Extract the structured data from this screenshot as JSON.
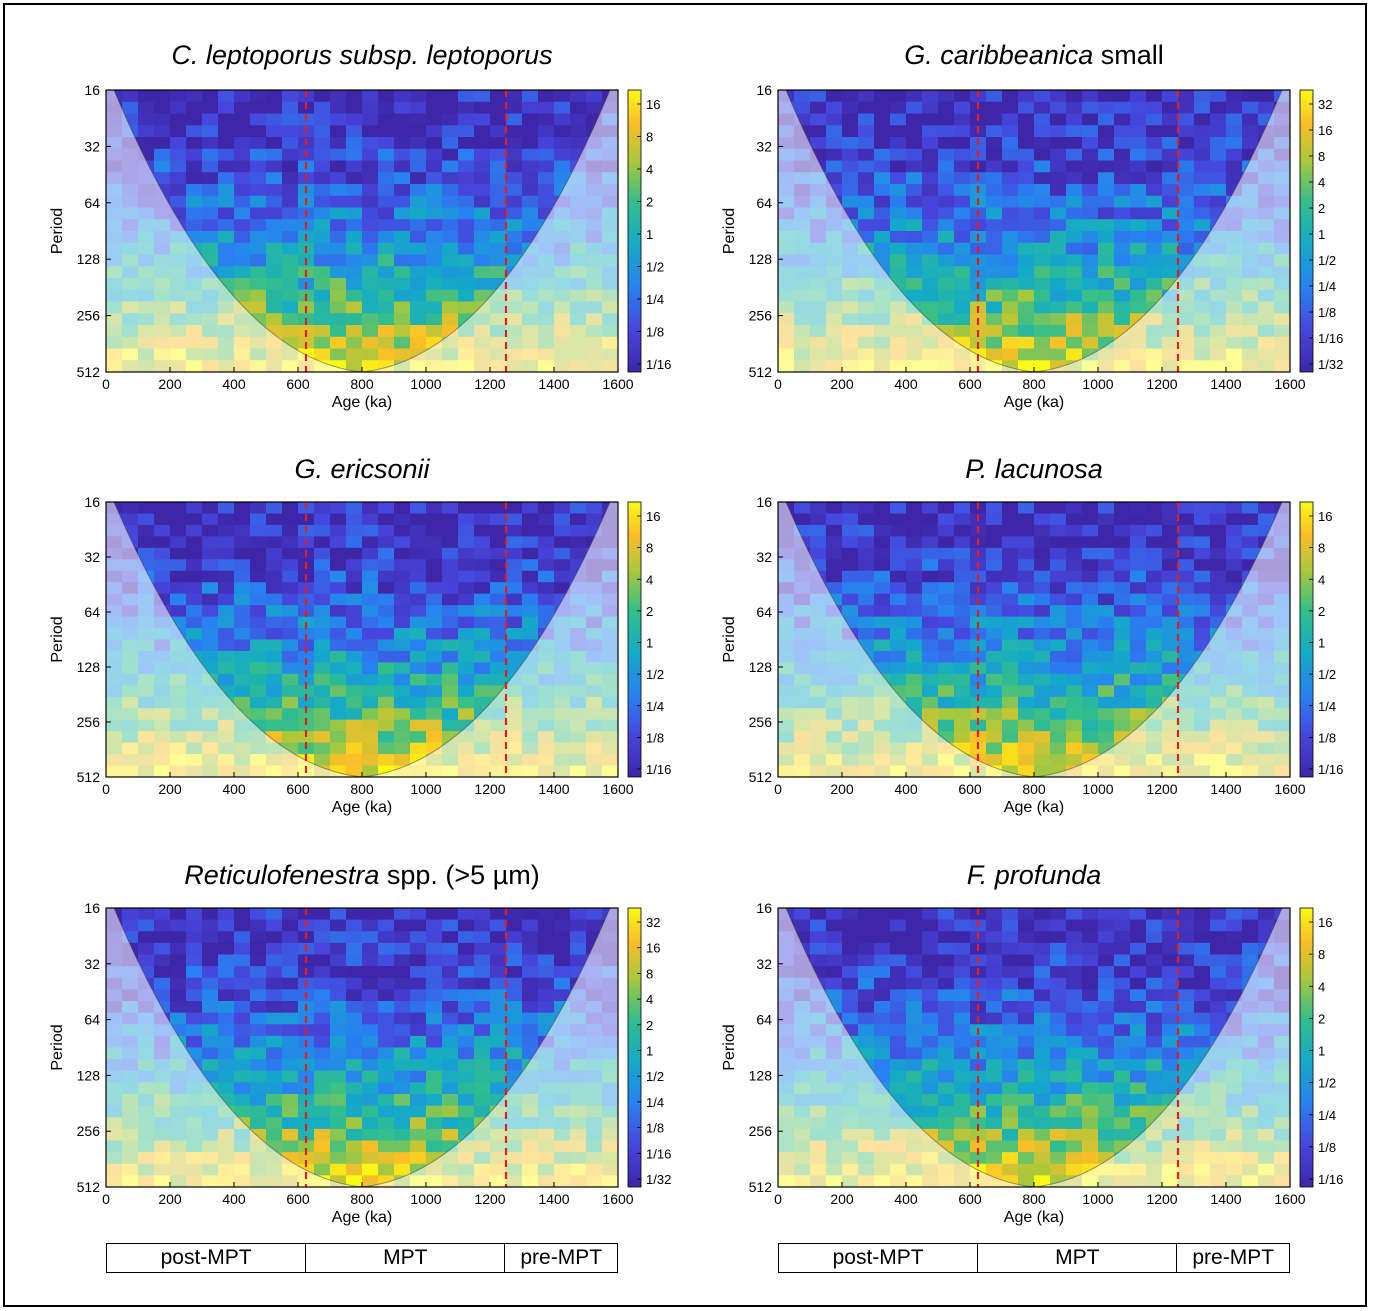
{
  "chart_data": [
    {
      "type": "heatmap",
      "title_italic": "C. leptoporus subsp. leptoporus",
      "title_rest": "",
      "xlabel": "Age (ka)",
      "ylabel": "Period",
      "x_ticks": [
        "0",
        "200",
        "400",
        "600",
        "800",
        "1000",
        "1200",
        "1400",
        "1600"
      ],
      "y_ticks": [
        "16",
        "32",
        "64",
        "128",
        "256",
        "512"
      ],
      "xlim": [
        0,
        1600
      ],
      "ylim": [
        16,
        512
      ],
      "colorbar_ticks": [
        "16",
        "8",
        "4",
        "2",
        "1",
        "1/2",
        "1/4",
        "1/8",
        "1/16"
      ],
      "mpt_boundaries": [
        625,
        1250
      ]
    },
    {
      "type": "heatmap",
      "title_italic": "G. caribbeanica",
      "title_rest": " small",
      "xlabel": "Age (ka)",
      "ylabel": "Period",
      "x_ticks": [
        "0",
        "200",
        "400",
        "600",
        "800",
        "1000",
        "1200",
        "1400",
        "1600"
      ],
      "y_ticks": [
        "16",
        "32",
        "64",
        "128",
        "256",
        "512"
      ],
      "xlim": [
        0,
        1600
      ],
      "ylim": [
        16,
        512
      ],
      "colorbar_ticks": [
        "32",
        "16",
        "8",
        "4",
        "2",
        "1",
        "1/2",
        "1/4",
        "1/8",
        "1/16",
        "1/32"
      ],
      "mpt_boundaries": [
        625,
        1250
      ]
    },
    {
      "type": "heatmap",
      "title_italic": "G. ericsonii",
      "title_rest": "",
      "xlabel": "Age (ka)",
      "ylabel": "Period",
      "x_ticks": [
        "0",
        "200",
        "400",
        "600",
        "800",
        "1000",
        "1200",
        "1400",
        "1600"
      ],
      "y_ticks": [
        "16",
        "32",
        "64",
        "128",
        "256",
        "512"
      ],
      "xlim": [
        0,
        1600
      ],
      "ylim": [
        16,
        512
      ],
      "colorbar_ticks": [
        "16",
        "8",
        "4",
        "2",
        "1",
        "1/2",
        "1/4",
        "1/8",
        "1/16"
      ],
      "mpt_boundaries": [
        625,
        1250
      ]
    },
    {
      "type": "heatmap",
      "title_italic": "P. lacunosa",
      "title_rest": "",
      "xlabel": "Age (ka)",
      "ylabel": "Period",
      "x_ticks": [
        "0",
        "200",
        "400",
        "600",
        "800",
        "1000",
        "1200",
        "1400",
        "1600"
      ],
      "y_ticks": [
        "16",
        "32",
        "64",
        "128",
        "256",
        "512"
      ],
      "xlim": [
        0,
        1600
      ],
      "ylim": [
        16,
        512
      ],
      "colorbar_ticks": [
        "16",
        "8",
        "4",
        "2",
        "1",
        "1/2",
        "1/4",
        "1/8",
        "1/16"
      ],
      "mpt_boundaries": [
        625,
        1250
      ]
    },
    {
      "type": "heatmap",
      "title_italic": "Reticulofenestra",
      "title_rest": " spp. (>5 µm)",
      "xlabel": "Age (ka)",
      "ylabel": "Period",
      "x_ticks": [
        "0",
        "200",
        "400",
        "600",
        "800",
        "1000",
        "1200",
        "1400",
        "1600"
      ],
      "y_ticks": [
        "16",
        "32",
        "64",
        "128",
        "256",
        "512"
      ],
      "xlim": [
        0,
        1600
      ],
      "ylim": [
        16,
        512
      ],
      "colorbar_ticks": [
        "32",
        "16",
        "8",
        "4",
        "2",
        "1",
        "1/2",
        "1/4",
        "1/8",
        "1/16",
        "1/32"
      ],
      "mpt_boundaries": [
        625,
        1250
      ]
    },
    {
      "type": "heatmap",
      "title_italic": "F. profunda",
      "title_rest": "",
      "xlabel": "Age (ka)",
      "ylabel": "Period",
      "x_ticks": [
        "0",
        "200",
        "400",
        "600",
        "800",
        "1000",
        "1200",
        "1400",
        "1600"
      ],
      "y_ticks": [
        "16",
        "32",
        "64",
        "128",
        "256",
        "512"
      ],
      "xlim": [
        0,
        1600
      ],
      "ylim": [
        16,
        512
      ],
      "colorbar_ticks": [
        "16",
        "8",
        "4",
        "2",
        "1",
        "1/2",
        "1/4",
        "1/8",
        "1/16"
      ],
      "mpt_boundaries": [
        625,
        1250
      ]
    }
  ],
  "phase_bar": {
    "labels": [
      "post-MPT",
      "MPT",
      "pre-MPT"
    ],
    "spans_ka": [
      [
        0,
        625
      ],
      [
        625,
        1250
      ],
      [
        1250,
        1600
      ]
    ]
  },
  "colors": {
    "boundary_line": "#e02020",
    "colormap_low": "#3b2a9c",
    "colormap_mid": "#16a3a0",
    "colormap_high": "#ffe14a"
  }
}
